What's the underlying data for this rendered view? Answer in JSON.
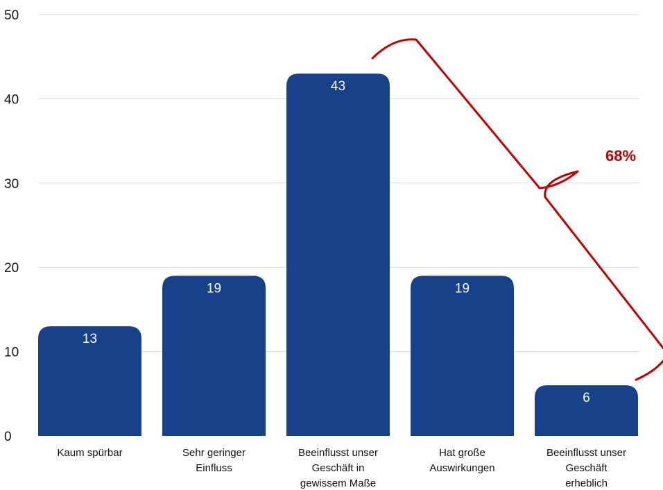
{
  "chart_data": {
    "type": "bar",
    "categories": [
      [
        "Kaum spürbar"
      ],
      [
        "Sehr geringer",
        "Einfluss"
      ],
      [
        "Beeinflusst unser",
        "Geschäft in",
        "gewissem Maße"
      ],
      [
        "Hat große",
        "Auswirkungen"
      ],
      [
        "Beeinflusst unser",
        "Geschäft",
        "erheblich"
      ]
    ],
    "values": [
      13,
      19,
      43,
      19,
      6
    ],
    "ylim": [
      0,
      50
    ],
    "yticks": [
      0,
      10,
      20,
      30,
      40,
      50
    ],
    "grid": true,
    "bar_color": "#17428a",
    "annotation": {
      "text": "68%",
      "color": "#c00000",
      "spans_categories": [
        2,
        4
      ]
    }
  }
}
